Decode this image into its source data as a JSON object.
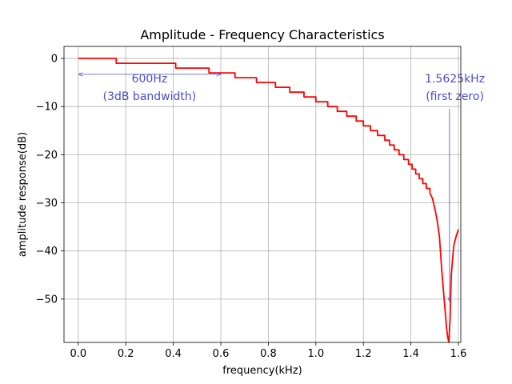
{
  "chart_data": {
    "type": "line",
    "title": "Amplitude - Frequency Characteristics",
    "xlabel": "frequency(kHz)",
    "ylabel": "amplitude response(dB)",
    "xlim": [
      -0.06,
      1.61
    ],
    "ylim": [
      -59,
      2.5
    ],
    "grid": true,
    "x_ticks": [
      0.0,
      0.2,
      0.4,
      0.6,
      0.8,
      1.0,
      1.2,
      1.4,
      1.6
    ],
    "x_tick_labels": [
      "0.0",
      "0.2",
      "0.4",
      "0.6",
      "0.8",
      "1.0",
      "1.2",
      "1.4",
      "1.6"
    ],
    "y_ticks": [
      0,
      -10,
      -20,
      -30,
      -40,
      -50
    ],
    "y_tick_labels": [
      "0",
      "−10",
      "−20",
      "−30",
      "−40",
      "−50"
    ],
    "series": [
      {
        "name": "amplitude response",
        "color": "#ff0000",
        "x": [
          0.0,
          0.16,
          0.16,
          0.41,
          0.41,
          0.55,
          0.55,
          0.6,
          0.6,
          0.66,
          0.66,
          0.75,
          0.75,
          0.83,
          0.83,
          0.89,
          0.89,
          0.95,
          0.95,
          1.0,
          1.0,
          1.05,
          1.05,
          1.09,
          1.09,
          1.13,
          1.13,
          1.17,
          1.17,
          1.2,
          1.2,
          1.23,
          1.23,
          1.26,
          1.26,
          1.29,
          1.29,
          1.31,
          1.31,
          1.33,
          1.33,
          1.35,
          1.35,
          1.37,
          1.37,
          1.39,
          1.39,
          1.405,
          1.405,
          1.42,
          1.42,
          1.435,
          1.435,
          1.45,
          1.45,
          1.465,
          1.465,
          1.48,
          1.48,
          1.49,
          1.5,
          1.51,
          1.52,
          1.53,
          1.54,
          1.55,
          1.555,
          1.56,
          1.565,
          1.57,
          1.58,
          1.59,
          1.6
        ],
        "y": [
          0,
          0,
          -1,
          -1,
          -2,
          -2,
          -3,
          -3,
          -3,
          -3,
          -4,
          -4,
          -5,
          -5,
          -6,
          -6,
          -7,
          -7,
          -8,
          -8,
          -9,
          -9,
          -10,
          -10,
          -11,
          -11,
          -12,
          -12,
          -13,
          -13,
          -14,
          -14,
          -15,
          -15,
          -16,
          -16,
          -17,
          -17,
          -18,
          -18,
          -19,
          -19,
          -20,
          -20,
          -21,
          -21,
          -22,
          -22,
          -23,
          -23,
          -24,
          -24,
          -25,
          -25,
          -26,
          -26,
          -27,
          -27,
          -28,
          -29,
          -31,
          -33.5,
          -37,
          -44,
          -50,
          -56,
          -58,
          -59,
          -54,
          -45,
          -39,
          -37,
          -35.5
        ]
      }
    ],
    "annotations": [
      {
        "text_line1": "600Hz",
        "text_line2": "(3dB bandwidth)",
        "color": "#4c4ccc",
        "arrow_from": [
          0.0,
          -3.3
        ],
        "arrow_to": [
          0.6,
          -3.3
        ],
        "text_at": [
          0.3,
          -5.0
        ]
      },
      {
        "text_line1": "1.5625kHz",
        "text_line2": "(first zero)",
        "color": "#4c4ccc",
        "arrow_from": [
          1.5625,
          -10.5
        ],
        "arrow_to": [
          1.5625,
          -50.5
        ],
        "text_at": [
          1.585,
          -5.0
        ]
      }
    ]
  }
}
